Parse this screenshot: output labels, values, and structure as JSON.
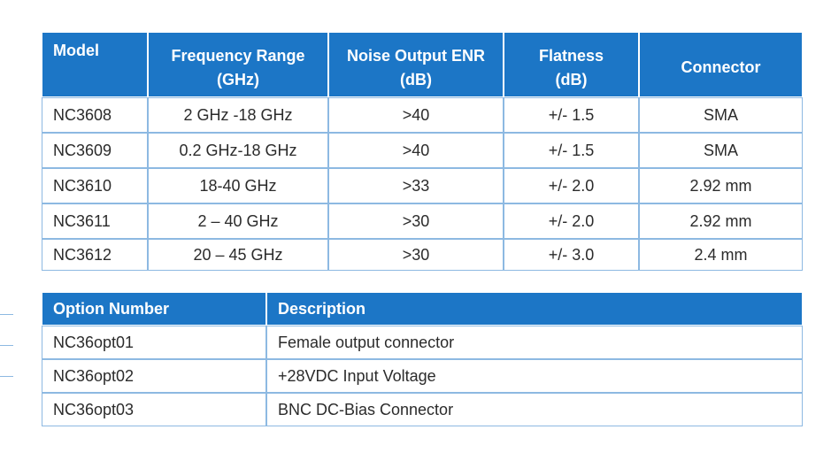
{
  "products": {
    "header": [
      [
        "Model"
      ],
      [
        "Frequency Range",
        "(GHz)"
      ],
      [
        "Noise Output ENR",
        "(dB)"
      ],
      [
        "Flatness",
        "(dB)"
      ],
      [
        "Connector"
      ]
    ],
    "rows": [
      [
        "NC3608",
        "2 GHz -18 GHz",
        ">40",
        "+/- 1.5",
        "SMA"
      ],
      [
        "NC3609",
        "0.2 GHz-18 GHz",
        ">40",
        "+/- 1.5",
        "SMA"
      ],
      [
        "NC3610",
        "18-40 GHz",
        ">33",
        "+/- 2.0",
        "2.92 mm"
      ],
      [
        "NC3611",
        "2 – 40 GHz",
        ">30",
        "+/- 2.0",
        "2.92 mm"
      ],
      [
        "NC3612",
        "20 – 45 GHz",
        ">30",
        "+/- 3.0",
        "2.4 mm"
      ]
    ]
  },
  "options": {
    "header": [
      "Option Number",
      "Description"
    ],
    "rows": [
      [
        "NC36opt01",
        "Female output connector"
      ],
      [
        "NC36opt02",
        "+28VDC Input Voltage"
      ],
      [
        "NC36opt03",
        "BNC DC-Bias Connector"
      ]
    ]
  }
}
